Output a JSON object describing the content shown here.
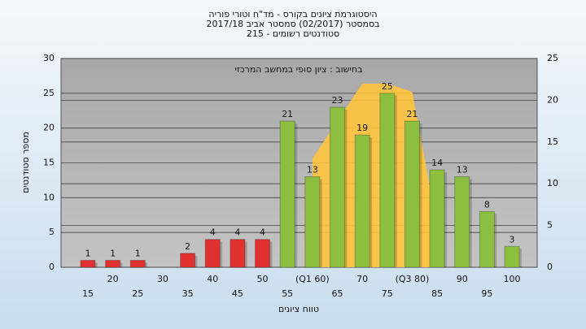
{
  "chart_data": {
    "type": "bar",
    "title": "היסטוגרמת ציונים בקורס - מד\"ח וטורי פוריה",
    "subtitle": "בסמסטר  (02/2017)  סמסטר אביב 2017/18",
    "subtitle2": "סטודנטים רשומים - 215",
    "annotation": "בחישוב : ציון סופי במחשב המרכזי",
    "ylabel": "מספר סטודנטים",
    "xlabel": "טווח ציונים",
    "categories": [
      "15",
      "20",
      "25",
      "30",
      "35",
      "40",
      "45",
      "50",
      "55",
      "(Q1 60)",
      "65",
      "70",
      "75",
      "(Q3 80)",
      "85",
      "90",
      "95",
      "100"
    ],
    "series": [
      {
        "type": "bar",
        "values": [
          1,
          1,
          1,
          null,
          2,
          4,
          4,
          4,
          21,
          13,
          23,
          19,
          25,
          21,
          14,
          13,
          8,
          3
        ],
        "colors": [
          "#e03030",
          "#e03030",
          "#e03030",
          "#e03030",
          "#e03030",
          "#e03030",
          "#e03030",
          "#e03030",
          "#8cbf40",
          "#8cbf40",
          "#8cbf40",
          "#8cbf40",
          "#8cbf40",
          "#8cbf40",
          "#8cbf40",
          "#8cbf40",
          "#8cbf40",
          "#8cbf40"
        ]
      },
      {
        "type": "area",
        "axis": "y2",
        "color": "#ffc43d",
        "values": [
          null,
          null,
          null,
          null,
          null,
          null,
          null,
          null,
          null,
          13,
          17.5,
          22,
          22,
          21,
          5,
          null,
          null,
          null
        ]
      }
    ],
    "ylim": [
      0,
      30
    ],
    "yticks": [
      0,
      5,
      10,
      15,
      20,
      25,
      30
    ],
    "y2lim": [
      0,
      25
    ],
    "y2ticks": [
      0,
      5,
      10,
      15,
      20,
      25
    ],
    "grid": true
  }
}
